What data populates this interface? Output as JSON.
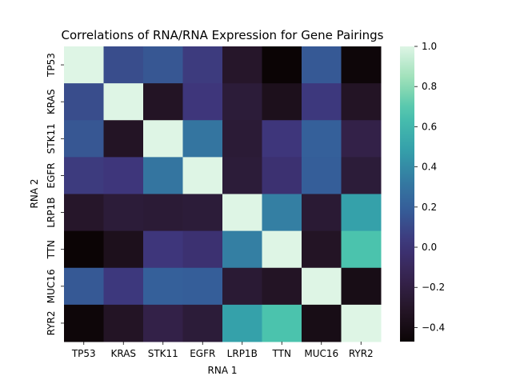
{
  "chart_data": {
    "type": "heatmap",
    "title": "Correlations of RNA/RNA Expression for Gene Pairings",
    "xlabel": "RNA 1",
    "ylabel": "RNA 2",
    "x_categories": [
      "TP53",
      "KRAS",
      "STK11",
      "EGFR",
      "LRP1B",
      "TTN",
      "MUC16",
      "RYR2"
    ],
    "y_categories": [
      "TP53",
      "KRAS",
      "STK11",
      "EGFR",
      "LRP1B",
      "TTN",
      "MUC16",
      "RYR2"
    ],
    "values": [
      [
        1.0,
        0.12,
        0.16,
        0.04,
        -0.3,
        -0.47,
        0.17,
        -0.45
      ],
      [
        0.12,
        1.0,
        -0.32,
        0.02,
        -0.24,
        -0.36,
        0.03,
        -0.32
      ],
      [
        0.16,
        -0.32,
        1.0,
        0.3,
        -0.25,
        0.02,
        0.2,
        -0.18
      ],
      [
        0.04,
        0.02,
        0.3,
        1.0,
        -0.24,
        -0.02,
        0.19,
        -0.24
      ],
      [
        -0.3,
        -0.24,
        -0.25,
        -0.24,
        1.0,
        0.35,
        -0.26,
        0.49
      ],
      [
        -0.47,
        -0.36,
        0.02,
        -0.02,
        0.35,
        1.0,
        -0.32,
        0.67
      ],
      [
        0.17,
        0.03,
        0.2,
        0.19,
        -0.26,
        -0.32,
        1.0,
        -0.39
      ],
      [
        -0.45,
        -0.32,
        -0.18,
        -0.24,
        0.49,
        0.67,
        -0.39,
        1.0
      ]
    ],
    "colorbar": {
      "min": -0.47,
      "max": 1.0,
      "ticks": [
        -0.4,
        -0.2,
        0.0,
        0.2,
        0.4,
        0.6,
        0.8,
        1.0
      ],
      "tick_labels": [
        "−0.4",
        "−0.2",
        "0.0",
        "0.2",
        "0.4",
        "0.6",
        "0.8",
        "1.0"
      ],
      "colormap": "mako"
    }
  }
}
